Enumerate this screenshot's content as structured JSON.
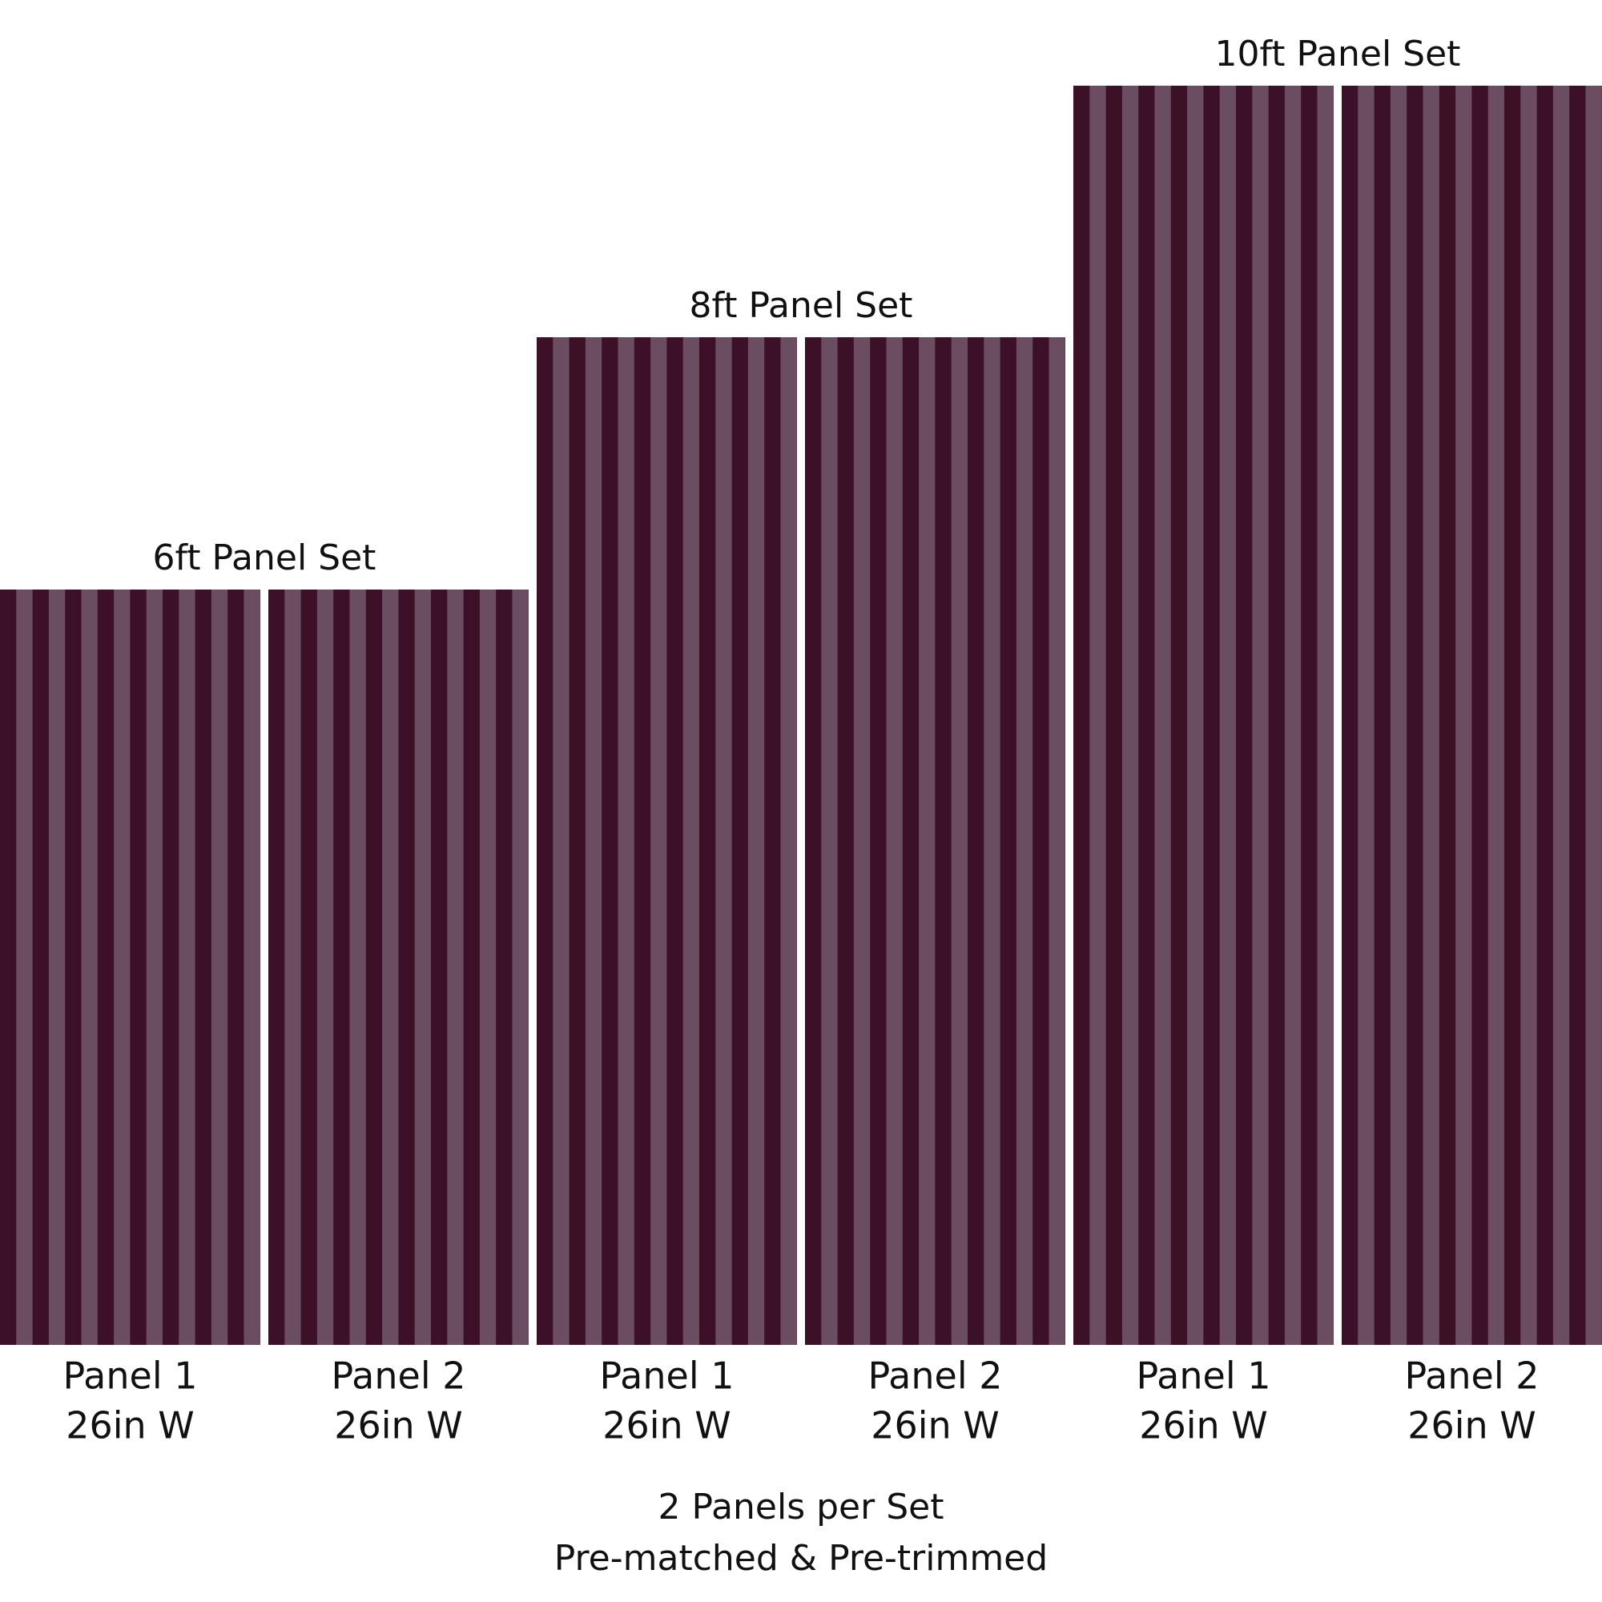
{
  "sets": [
    {
      "title": "6ft Panel Set",
      "panels": [
        {
          "name": "Panel 1",
          "width": "26in W"
        },
        {
          "name": "Panel 2",
          "width": "26in W"
        }
      ]
    },
    {
      "title": "8ft Panel Set",
      "panels": [
        {
          "name": "Panel 1",
          "width": "26in W"
        },
        {
          "name": "Panel 2",
          "width": "26in W"
        }
      ]
    },
    {
      "title": "10ft Panel Set",
      "panels": [
        {
          "name": "Panel 1",
          "width": "26in W"
        },
        {
          "name": "Panel 2",
          "width": "26in W"
        }
      ]
    }
  ],
  "footer": {
    "line1": "2 Panels per Set",
    "line2": "Pre-matched & Pre-trimmed"
  }
}
